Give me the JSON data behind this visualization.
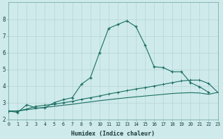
{
  "xlabel": "Humidex (Indice chaleur)",
  "xlim": [
    0,
    23
  ],
  "ylim": [
    2,
    9
  ],
  "yticks": [
    2,
    3,
    4,
    5,
    6,
    7,
    8
  ],
  "xticks": [
    0,
    1,
    2,
    3,
    4,
    5,
    6,
    7,
    8,
    9,
    10,
    11,
    12,
    13,
    14,
    15,
    16,
    17,
    18,
    19,
    20,
    21,
    22,
    23
  ],
  "bg_color": "#ceeaea",
  "grid_color": "#b8d4d4",
  "line_color": "#1a6e62",
  "line1_x": [
    0,
    1,
    2,
    3,
    4,
    5,
    6,
    7,
    8,
    9,
    10,
    11,
    12,
    13,
    14,
    15,
    16,
    17,
    18,
    19,
    20,
    21,
    22
  ],
  "line1_y": [
    2.5,
    2.42,
    2.88,
    2.68,
    2.7,
    3.0,
    3.18,
    3.3,
    4.1,
    4.5,
    6.0,
    7.45,
    7.68,
    7.9,
    7.55,
    6.45,
    5.15,
    5.1,
    4.85,
    4.85,
    4.2,
    3.95,
    3.62
  ],
  "line2_x": [
    0,
    1,
    2,
    3,
    4,
    5,
    6,
    7,
    8,
    9,
    10,
    11,
    12,
    13,
    14,
    15,
    16,
    17,
    18,
    19,
    20,
    21,
    22,
    23
  ],
  "line2_y": [
    2.5,
    2.5,
    2.62,
    2.78,
    2.85,
    2.9,
    3.0,
    3.08,
    3.2,
    3.3,
    3.4,
    3.52,
    3.62,
    3.72,
    3.82,
    3.9,
    4.0,
    4.1,
    4.2,
    4.3,
    4.35,
    4.35,
    4.15,
    3.62
  ],
  "line3_x": [
    0,
    1,
    2,
    3,
    4,
    5,
    6,
    7,
    8,
    9,
    10,
    11,
    12,
    13,
    14,
    15,
    16,
    17,
    18,
    19,
    20,
    21,
    22,
    23
  ],
  "line3_y": [
    2.5,
    2.5,
    2.58,
    2.65,
    2.72,
    2.78,
    2.85,
    2.9,
    2.98,
    3.05,
    3.12,
    3.18,
    3.24,
    3.3,
    3.35,
    3.4,
    3.45,
    3.5,
    3.55,
    3.58,
    3.6,
    3.58,
    3.5,
    3.62
  ]
}
